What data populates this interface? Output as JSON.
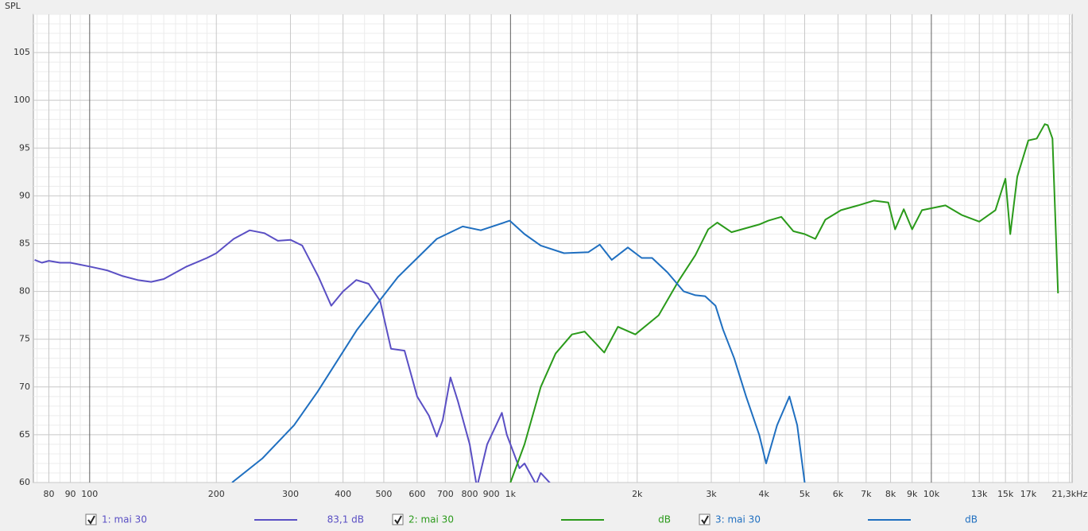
{
  "chart_data": {
    "type": "line",
    "y_axis_label": "SPL",
    "xscale": "log",
    "grid": true,
    "xlim": [
      73.5,
      21600
    ],
    "ylim": [
      60,
      109
    ],
    "yticks": [
      60,
      65,
      70,
      75,
      80,
      85,
      90,
      95,
      100,
      105
    ],
    "yminor": [
      61,
      62,
      63,
      64,
      66,
      67,
      68,
      69,
      71,
      72,
      73,
      74,
      76,
      77,
      78,
      79,
      81,
      82,
      83,
      84,
      86,
      87,
      88,
      89,
      91,
      92,
      93,
      94,
      96,
      97,
      98,
      99,
      101,
      102,
      103,
      104,
      106,
      107,
      108,
      109
    ],
    "xticks": [
      80,
      90,
      100,
      200,
      300,
      400,
      500,
      600,
      700,
      800,
      900,
      {
        "value": 1000,
        "label": "1k"
      },
      {
        "value": 2000,
        "label": "2k"
      },
      {
        "value": 3000,
        "label": "3k"
      },
      {
        "value": 4000,
        "label": "4k"
      },
      {
        "value": 5000,
        "label": "5k"
      },
      {
        "value": 6000,
        "label": "6k"
      },
      {
        "value": 7000,
        "label": "7k"
      },
      {
        "value": 8000,
        "label": "8k"
      },
      {
        "value": 9000,
        "label": "9k"
      },
      {
        "value": 10000,
        "label": "10k"
      },
      {
        "value": 13000,
        "label": "13k"
      },
      {
        "value": 15000,
        "label": "15k"
      },
      {
        "value": 17000,
        "label": "17k"
      },
      {
        "value": 21300,
        "label": "21,3kHz"
      }
    ],
    "xminor": [
      75,
      85,
      95,
      110,
      120,
      130,
      140,
      150,
      160,
      170,
      180,
      190,
      250,
      350,
      450,
      1100,
      1200,
      1300,
      1400,
      1500,
      1600,
      1700,
      1800,
      1900,
      2500,
      3500,
      4500,
      11000,
      12000,
      14000,
      16000,
      18000,
      19000,
      20000
    ],
    "series": [
      {
        "name": "1: mai 30",
        "legend_value": "83,1 dB",
        "color": "#5a4fc4",
        "x": [
          74,
          77,
          80,
          85,
          90,
          100,
          110,
          120,
          130,
          140,
          150,
          170,
          190,
          200,
          220,
          240,
          260,
          280,
          300,
          320,
          350,
          375,
          400,
          430,
          460,
          490,
          520,
          560,
          600,
          640,
          668,
          690,
          720,
          750,
          800,
          832,
          880,
          954,
          980,
          1050,
          1080,
          1150,
          1180,
          1250
        ],
        "values": [
          83.3,
          83.0,
          83.2,
          83.0,
          83.0,
          82.6,
          82.2,
          81.6,
          81.2,
          81.0,
          81.3,
          82.6,
          83.5,
          84.0,
          85.5,
          86.4,
          86.1,
          85.3,
          85.4,
          84.8,
          81.5,
          78.5,
          80.0,
          81.2,
          80.8,
          79.0,
          74.0,
          73.8,
          69.0,
          67.0,
          64.8,
          66.5,
          71.0,
          68.5,
          64.0,
          59.5,
          64.0,
          67.3,
          65.0,
          61.5,
          62.0,
          59.8,
          61.0,
          59.8
        ]
      },
      {
        "name": "2: mai 30",
        "legend_value": "dB",
        "color": "#2a9a1a",
        "x": [
          1000,
          1080,
          1180,
          1280,
          1400,
          1500,
          1670,
          1800,
          1980,
          2250,
          2500,
          2750,
          2950,
          3100,
          3350,
          3900,
          4100,
          4400,
          4700,
          5000,
          5300,
          5600,
          6100,
          6700,
          7300,
          7900,
          8200,
          8600,
          9000,
          9500,
          10800,
          11800,
          13000,
          14200,
          15000,
          15400,
          16000,
          17000,
          17800,
          18600,
          18900,
          19400,
          20000
        ],
        "values": [
          60,
          64,
          70,
          73.5,
          75.5,
          75.8,
          73.6,
          76.3,
          75.5,
          77.5,
          81,
          83.8,
          86.5,
          87.2,
          86.2,
          87.0,
          87.4,
          87.8,
          86.3,
          86.0,
          85.5,
          87.5,
          88.5,
          89.0,
          89.5,
          89.3,
          86.5,
          88.6,
          86.5,
          88.5,
          89.0,
          88.0,
          87.3,
          88.5,
          91.8,
          86.0,
          92.0,
          95.8,
          96.0,
          97.5,
          97.4,
          96.0,
          79.8
        ]
      },
      {
        "name": "3: mai 30",
        "legend_value": "dB",
        "color": "#1f6fc0",
        "x": [
          218,
          257,
          306,
          348,
          432,
          540,
          668,
          770,
          850,
          996,
          1080,
          1180,
          1340,
          1530,
          1630,
          1740,
          1900,
          2050,
          2170,
          2360,
          2580,
          2750,
          2900,
          3070,
          3200,
          3400,
          3630,
          3900,
          4050,
          4300,
          4600,
          4800,
          5000
        ],
        "values": [
          60,
          62.5,
          66,
          69.5,
          76,
          81.5,
          85.5,
          86.8,
          86.4,
          87.4,
          86.0,
          84.8,
          84.0,
          84.1,
          84.9,
          83.3,
          84.6,
          83.5,
          83.5,
          82.0,
          80.0,
          79.6,
          79.5,
          78.5,
          76.0,
          73.0,
          69.0,
          65.0,
          62.0,
          66.0,
          69.0,
          66.0,
          60.0
        ]
      }
    ]
  }
}
